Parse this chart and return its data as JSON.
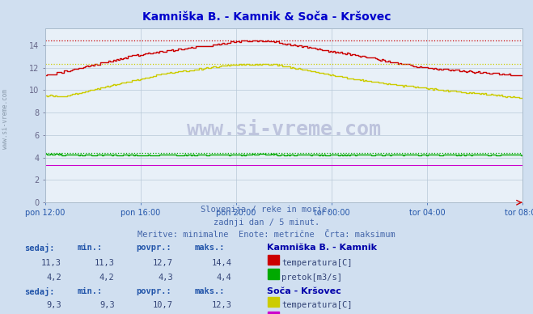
{
  "title": "Kamniška B. - Kamnik & Soča - Kršovec",
  "title_color": "#0000cc",
  "bg_color": "#d0dff0",
  "plot_bg_color": "#e8f0f8",
  "grid_color": "#b8c8d8",
  "x_ticks": [
    "pon 12:00",
    "pon 16:00",
    "pon 20:00",
    "tor 00:00",
    "tor 04:00",
    "tor 08:00"
  ],
  "x_tick_positions": [
    0,
    48,
    96,
    144,
    192,
    240
  ],
  "n_points": 289,
  "subtitle1": "Slovenija / reke in morje.",
  "subtitle2": "zadnji dan / 5 minut.",
  "subtitle3": "Meritve: minimalne  Enote: metrične  Črta: maksimum",
  "subtitle_color": "#4466aa",
  "watermark": "www.si-vreme.com",
  "watermark_color": "#000066",
  "ylabel_color": "#666688",
  "ylim": [
    0,
    15.5
  ],
  "yticks": [
    0,
    2,
    4,
    6,
    8,
    10,
    12,
    14
  ],
  "station1_name": "Kamniška B. - Kamnik",
  "station1_temp_color": "#cc0000",
  "station1_flow_color": "#00aa00",
  "station1_temp_max": 14.4,
  "station1_flow_max": 4.4,
  "station1_temp_min": 11.3,
  "station1_flow_min": 4.2,
  "station1_temp_avg": 12.7,
  "station1_flow_avg": 4.3,
  "station1_temp_cur": 11.3,
  "station1_flow_cur": 4.2,
  "station2_name": "Soča - Kršovec",
  "station2_temp_color": "#cccc00",
  "station2_flow_color": "#cc00cc",
  "station2_temp_max": 12.3,
  "station2_flow_max": 3.3,
  "station2_temp_min": 9.3,
  "station2_flow_min": 3.3,
  "station2_temp_avg": 10.7,
  "station2_flow_avg": 3.3,
  "station2_temp_cur": 9.3,
  "station2_flow_cur": 3.3,
  "table_header_color": "#0000aa",
  "table_value_color": "#334477",
  "table_label_color": "#2255aa"
}
